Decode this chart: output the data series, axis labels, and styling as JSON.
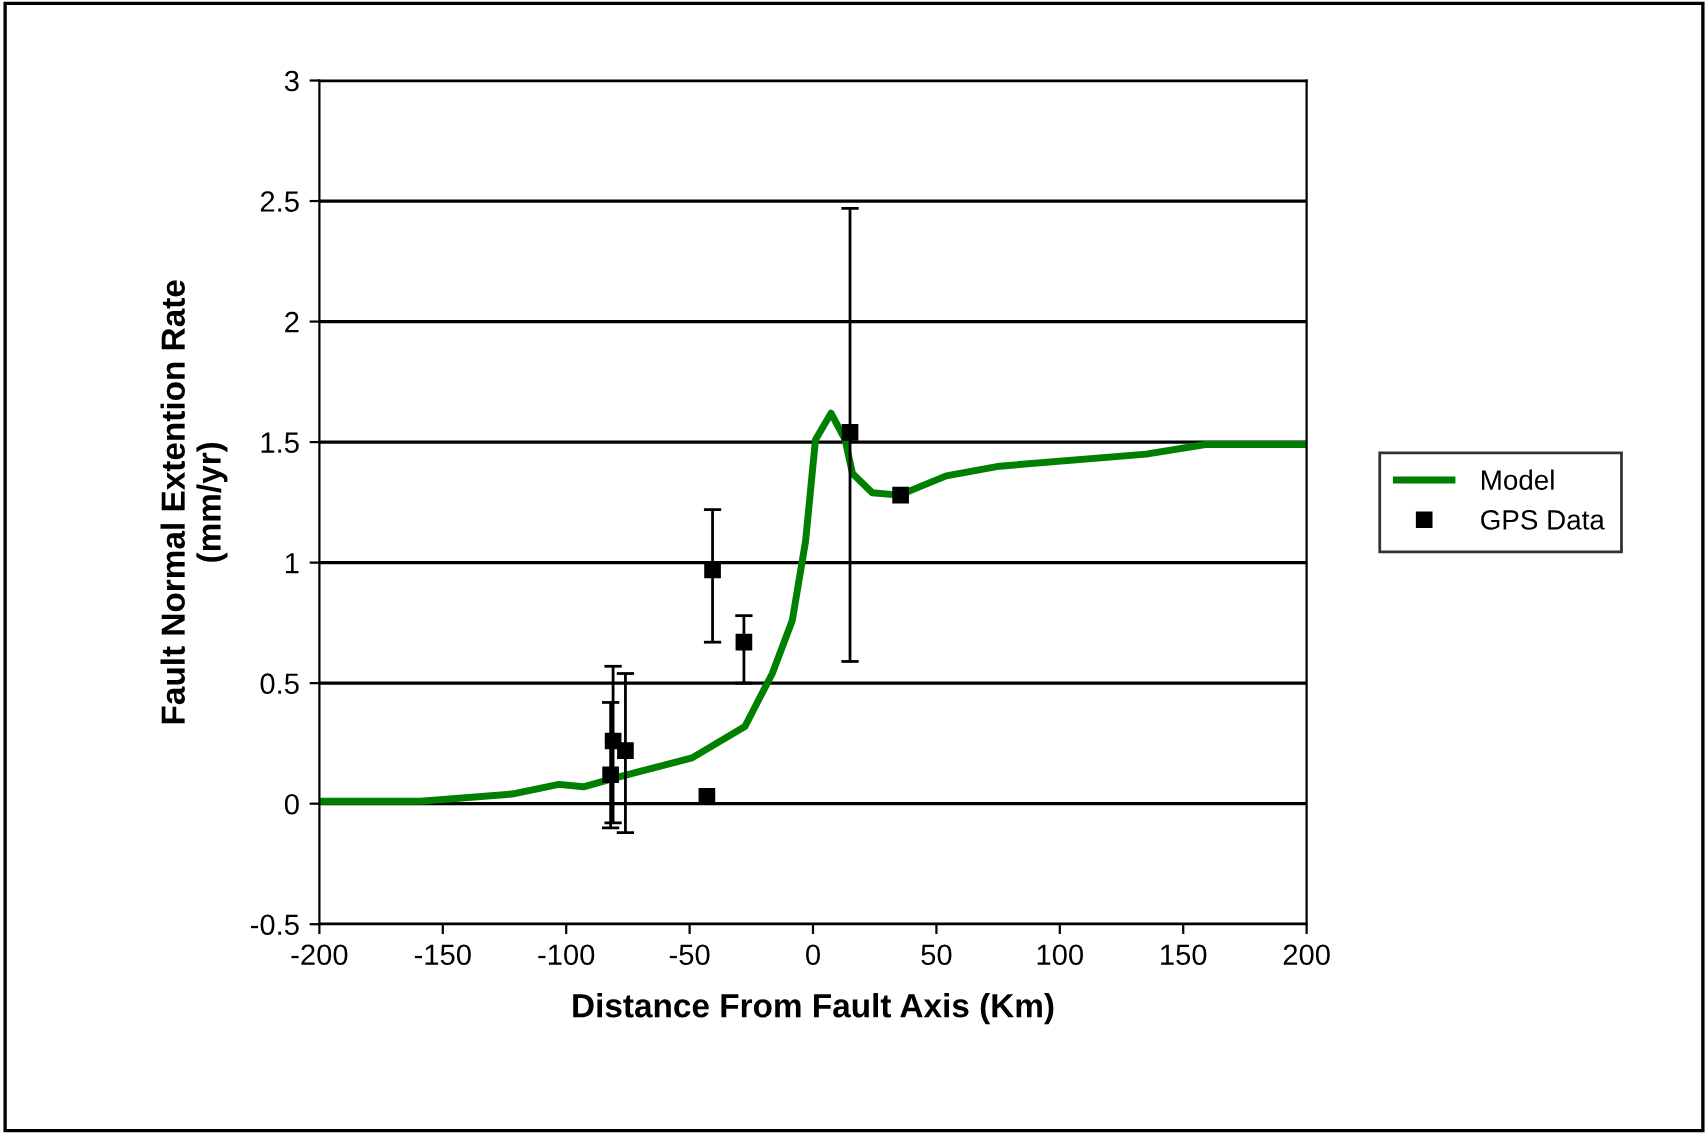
{
  "chart_data": {
    "type": "line",
    "xlabel": "Distance From Fault Axis (Km)",
    "ylabel": "Fault Normal Extention Rate\n(mm/yr)",
    "xlim": [
      -200,
      200
    ],
    "xticks": [
      -200,
      -150,
      -100,
      -50,
      0,
      50,
      100,
      150,
      200
    ],
    "ylim": [
      -0.5,
      3
    ],
    "yticks": [
      -0.5,
      0,
      0.5,
      1,
      1.5,
      2,
      2.5,
      3
    ],
    "grid": "y",
    "legend": "right",
    "series": [
      {
        "name": "Model",
        "color": "#008000",
        "marker": "none",
        "x": [
          -200,
          -159,
          -122,
          -103,
          -93,
          -79,
          -49,
          -27.6,
          -16.5,
          -8.4,
          -3,
          1,
          7.3,
          13,
          16,
          24,
          35,
          54,
          75.6,
          135,
          159,
          200
        ],
        "values": [
          0.01,
          0.01,
          0.04,
          0.08,
          0.07,
          0.11,
          0.19,
          0.32,
          0.54,
          0.76,
          1.09,
          1.51,
          1.62,
          1.51,
          1.37,
          1.29,
          1.28,
          1.36,
          1.4,
          1.45,
          1.49,
          1.49
        ]
      },
      {
        "name": "GPS Data",
        "type": "scatter",
        "color": "#000000",
        "marker": "square",
        "x": [
          -82,
          -81,
          -76,
          -43,
          -40.7,
          -28,
          15,
          35.5
        ],
        "values": [
          0.12,
          0.26,
          0.22,
          0.03,
          0.97,
          0.67,
          1.54,
          1.28
        ],
        "errors": [
          [
            -0.1,
            0.42
          ],
          [
            -0.08,
            0.57
          ],
          [
            -0.12,
            0.54
          ],
          null,
          [
            0.67,
            1.22
          ],
          [
            0.5,
            0.78
          ],
          [
            0.59,
            2.47
          ],
          null
        ]
      }
    ]
  }
}
